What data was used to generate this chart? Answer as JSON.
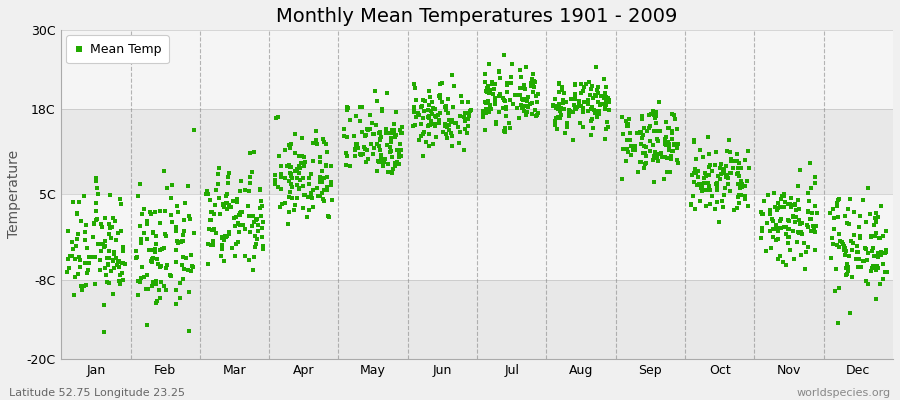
{
  "title": "Monthly Mean Temperatures 1901 - 2009",
  "ylabel": "Temperature",
  "subtitle_left": "Latitude 52.75 Longitude 23.25",
  "subtitle_right": "worldspecies.org",
  "legend_label": "Mean Temp",
  "dot_color": "#22aa00",
  "dot_size": 8,
  "ylim": [
    -20,
    30
  ],
  "yticks": [
    -20,
    -8,
    5,
    18,
    30
  ],
  "ytick_labels": [
    "-20C",
    "-8C",
    "5C",
    "18C",
    "30C"
  ],
  "months": [
    "Jan",
    "Feb",
    "Mar",
    "Apr",
    "May",
    "Jun",
    "Jul",
    "Aug",
    "Sep",
    "Oct",
    "Nov",
    "Dec"
  ],
  "month_means": [
    -3.5,
    -4.0,
    1.0,
    7.5,
    13.5,
    17.0,
    19.5,
    18.5,
    13.0,
    7.0,
    1.0,
    -2.5
  ],
  "month_stds": [
    4.2,
    4.8,
    4.0,
    3.5,
    3.0,
    2.5,
    2.0,
    2.0,
    2.5,
    3.0,
    3.5,
    3.8
  ],
  "n_years": 109,
  "background_color": "#f0f0f0",
  "plot_bg_color": "#ffffff",
  "band_colors": [
    "#e8e8e8",
    "#f5f5f5"
  ],
  "grid_color": "#888888",
  "title_fontsize": 14,
  "axis_fontsize": 10,
  "tick_fontsize": 9,
  "legend_fontsize": 9,
  "subtitle_fontsize": 8
}
